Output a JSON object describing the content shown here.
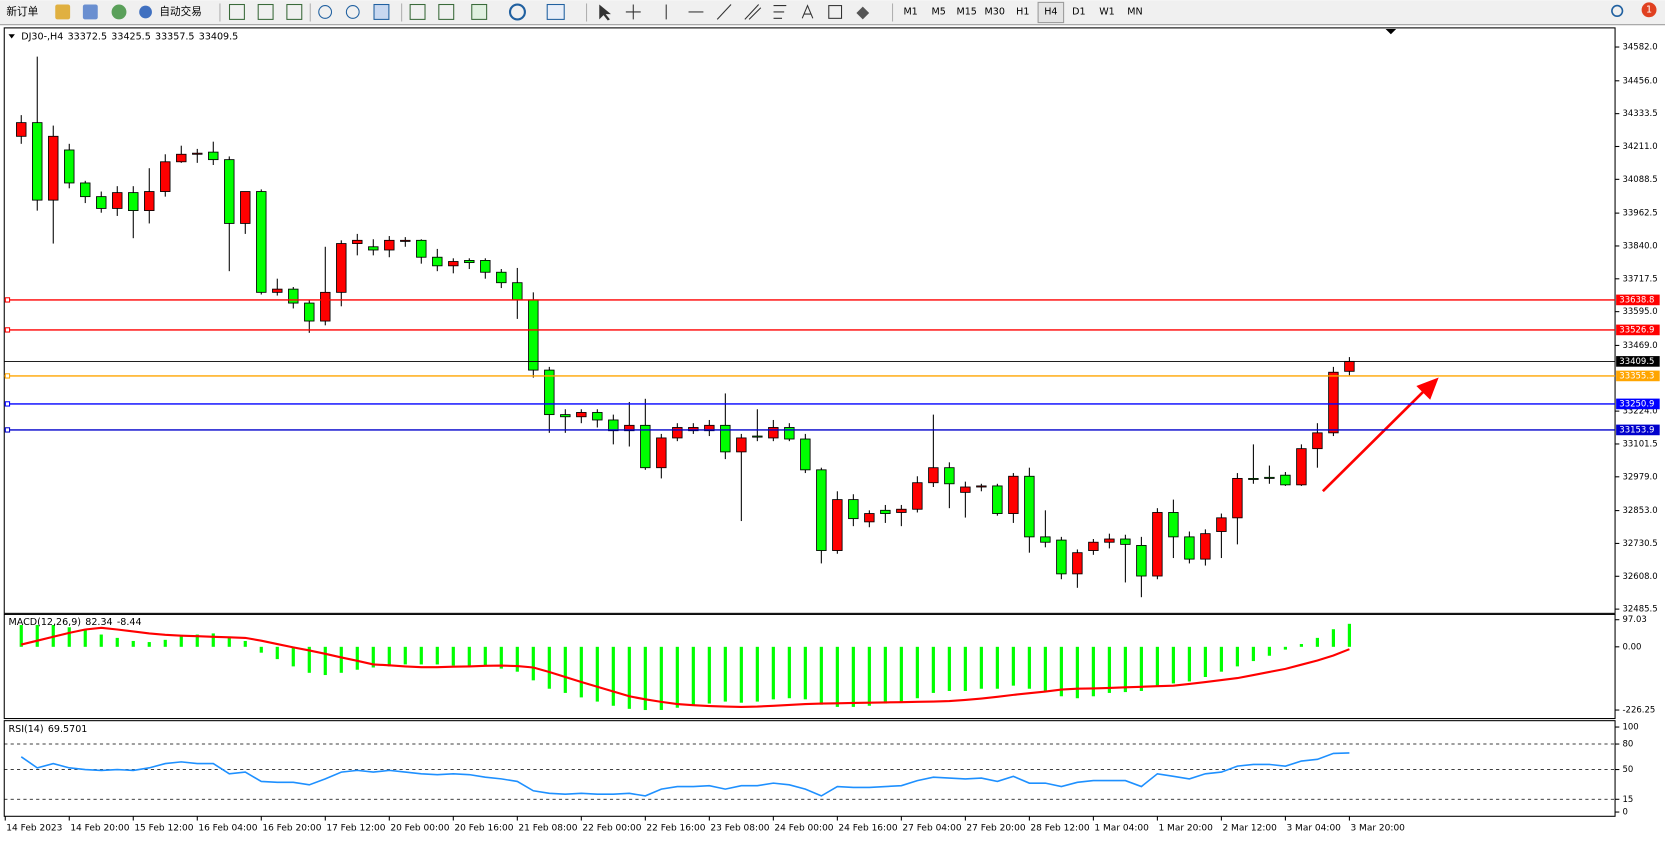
{
  "toolbar": {
    "new_order": "新订单",
    "auto_trading": "自动交易",
    "timeframes": [
      "M1",
      "M5",
      "M15",
      "M30",
      "H1",
      "H4",
      "D1",
      "W1",
      "MN"
    ],
    "notifications": 1
  },
  "chart_data": [
    {
      "type": "candlestick",
      "title": "DJ30-,H4",
      "up_color": "#ff0000",
      "down_color": "#00ff00",
      "ohlc": [
        [
          34249,
          34328,
          34221,
          34300
        ],
        [
          34300,
          34546,
          33972,
          34011
        ],
        [
          34011,
          34289,
          33849,
          34249
        ],
        [
          34198,
          34221,
          34055,
          34075
        ],
        [
          34075,
          34083,
          34000,
          34024
        ],
        [
          34024,
          34043,
          33964,
          33980
        ],
        [
          33980,
          34063,
          33952,
          34039
        ],
        [
          34039,
          34063,
          33869,
          33972
        ],
        [
          33972,
          34130,
          33924,
          34043
        ],
        [
          34043,
          34182,
          34024,
          34154
        ],
        [
          34154,
          34214,
          34150,
          34182
        ],
        [
          34182,
          34202,
          34150,
          34186
        ],
        [
          34190,
          34229,
          34142,
          34162
        ],
        [
          34162,
          34174,
          33746,
          33924
        ],
        [
          33924,
          34043,
          33885,
          34043
        ],
        [
          34043,
          34051,
          33659,
          33667
        ],
        [
          33667,
          33718,
          33655,
          33679
        ],
        [
          33679,
          33687,
          33607,
          33627
        ],
        [
          33627,
          33639,
          33516,
          33560
        ],
        [
          33560,
          33837,
          33544,
          33667
        ],
        [
          33667,
          33861,
          33615,
          33849
        ],
        [
          33849,
          33885,
          33805,
          33861
        ],
        [
          33837,
          33865,
          33805,
          33825
        ],
        [
          33825,
          33877,
          33798,
          33861
        ],
        [
          33857,
          33873,
          33837,
          33861
        ],
        [
          33861,
          33865,
          33774,
          33798
        ],
        [
          33798,
          33829,
          33746,
          33766
        ],
        [
          33766,
          33794,
          33738,
          33782
        ],
        [
          33786,
          33794,
          33754,
          33778
        ],
        [
          33786,
          33794,
          33718,
          33742
        ],
        [
          33742,
          33754,
          33683,
          33703
        ],
        [
          33703,
          33758,
          33568,
          33639
        ],
        [
          33639,
          33667,
          33349,
          33377
        ],
        [
          33377,
          33389,
          33143,
          33211
        ],
        [
          33211,
          33231,
          33143,
          33203
        ],
        [
          33203,
          33231,
          33179,
          33219
        ],
        [
          33219,
          33231,
          33163,
          33191
        ],
        [
          33191,
          33211,
          33100,
          33151
        ],
        [
          33151,
          33258,
          33092,
          33171
        ],
        [
          33171,
          33270,
          33005,
          33013
        ],
        [
          33013,
          33139,
          32973,
          33124
        ],
        [
          33124,
          33179,
          33112,
          33163
        ],
        [
          33151,
          33179,
          33139,
          33163
        ],
        [
          33151,
          33191,
          33131,
          33171
        ],
        [
          33171,
          33290,
          33045,
          33072
        ],
        [
          33072,
          33139,
          32814,
          33124
        ],
        [
          33131,
          33231,
          33112,
          33128
        ],
        [
          33124,
          33191,
          33112,
          33163
        ],
        [
          33163,
          33179,
          33112,
          33120
        ],
        [
          33120,
          33139,
          32993,
          33005
        ],
        [
          33005,
          33013,
          32656,
          32704
        ],
        [
          32704,
          32925,
          32692,
          32894
        ],
        [
          32894,
          32914,
          32795,
          32823
        ],
        [
          32811,
          32854,
          32791,
          32842
        ],
        [
          32854,
          32874,
          32807,
          32842
        ],
        [
          32846,
          32874,
          32795,
          32858
        ],
        [
          32858,
          32981,
          32846,
          32957
        ],
        [
          32957,
          33211,
          32941,
          33013
        ],
        [
          33013,
          33033,
          32862,
          32953
        ],
        [
          32921,
          32961,
          32827,
          32941
        ],
        [
          32941,
          32953,
          32925,
          32945
        ],
        [
          32945,
          32953,
          32834,
          32842
        ],
        [
          32842,
          32993,
          32807,
          32981
        ],
        [
          32981,
          33013,
          32696,
          32755
        ],
        [
          32755,
          32854,
          32716,
          32735
        ],
        [
          32743,
          32755,
          32597,
          32617
        ],
        [
          32617,
          32708,
          32565,
          32696
        ],
        [
          32704,
          32747,
          32688,
          32735
        ],
        [
          32735,
          32767,
          32712,
          32747
        ],
        [
          32747,
          32763,
          32585,
          32727
        ],
        [
          32723,
          32755,
          32530,
          32609
        ],
        [
          32609,
          32862,
          32597,
          32846
        ],
        [
          32846,
          32894,
          32676,
          32755
        ],
        [
          32755,
          32775,
          32656,
          32672
        ],
        [
          32672,
          32783,
          32648,
          32767
        ],
        [
          32775,
          32842,
          32676,
          32826
        ],
        [
          32826,
          32993,
          32727,
          32973
        ],
        [
          32973,
          33100,
          32953,
          32969
        ],
        [
          32977,
          33021,
          32953,
          32973
        ],
        [
          32985,
          32997,
          32945,
          32949
        ],
        [
          32949,
          33100,
          32945,
          33084
        ],
        [
          33084,
          33179,
          33013,
          33143
        ],
        [
          33143,
          33389,
          33131,
          33369
        ],
        [
          33372.5,
          33425.5,
          33357.5,
          33409.5
        ]
      ],
      "ylim": [
        32473.7,
        34649.4
      ],
      "yticks": [
        {
          "value": 34582,
          "label": "34582.0"
        },
        {
          "value": 34456,
          "label": "34456.0"
        },
        34333.5,
        {
          "value": 34211,
          "label": "34211.0"
        },
        34088.5,
        33962.5,
        {
          "value": 33840,
          "label": "33840.0"
        },
        33717.5,
        {
          "value": 33595,
          "label": "33595.0"
        },
        {
          "value": 33469,
          "label": "33469.0"
        },
        {
          "value": 33224,
          "label": "33224.0"
        },
        33101.5,
        {
          "value": 32979,
          "label": "32979.0"
        },
        {
          "value": 32853,
          "label": "32853.0"
        },
        32730.5,
        {
          "value": 32608,
          "label": "32608.0"
        },
        32485.5
      ],
      "levels": [
        {
          "value": 33638.8,
          "color": "#ff0000"
        },
        {
          "value": 33526.9,
          "color": "#ff0000"
        },
        {
          "value": 33355.3,
          "color": "#ffa500"
        },
        {
          "value": 33250.9,
          "color": "#0000ff"
        },
        {
          "value": 33153.9,
          "color": "#0000cc"
        }
      ],
      "x_labels": [
        "14 Feb 2023",
        "14 Feb 20:00",
        "15 Feb 12:00",
        "16 Feb 04:00",
        "16 Feb 20:00",
        "17 Feb 12:00",
        "20 Feb 00:00",
        "20 Feb 16:00",
        "21 Feb 08:00",
        "22 Feb 00:00",
        "22 Feb 16:00",
        "23 Feb 08:00",
        "24 Feb 00:00",
        "24 Feb 16:00",
        "27 Feb 04:00",
        "27 Feb 20:00",
        "28 Feb 12:00",
        "1 Mar 04:00",
        "1 Mar 20:00",
        "2 Mar 12:00",
        "3 Mar 04:00",
        "3 Mar 20:00"
      ]
    },
    {
      "type": "macd",
      "title": "MACD(12,26,9)",
      "series": [
        {
          "color": "#00ff00",
          "values": [
            78,
            78,
            78,
            70,
            63,
            44,
            32,
            21,
            17,
            25,
            40,
            44,
            48,
            32,
            21,
            -21,
            -44,
            -70,
            -93,
            -101,
            -93,
            -82,
            -74,
            -70,
            -63,
            -63,
            -63,
            -67,
            -67,
            -70,
            -78,
            -89,
            -120,
            -150,
            -165,
            -181,
            -196,
            -211,
            -222,
            -226.25,
            -226,
            -218,
            -211,
            -203,
            -196,
            -200,
            -196,
            -188,
            -184,
            -188,
            -207,
            -215,
            -215,
            -211,
            -203,
            -196,
            -184,
            -165,
            -158,
            -158,
            -150,
            -150,
            -139,
            -150,
            -158,
            -177,
            -184,
            -177,
            -165,
            -162,
            -158,
            -143,
            -131,
            -124,
            -108,
            -89,
            -70,
            -51,
            -32,
            -10,
            10,
            32,
            63,
            82.34
          ]
        },
        {
          "color": "#ff0000",
          "values": [
            8,
            22,
            36,
            50,
            62,
            68,
            62,
            55,
            48,
            43,
            40,
            38,
            36,
            34,
            32,
            22,
            10,
            -2,
            -13,
            -25,
            -38,
            -50,
            -63,
            -66,
            -70,
            -73,
            -73,
            -71,
            -70,
            -68,
            -67,
            -69,
            -74,
            -90,
            -108,
            -126,
            -143,
            -160,
            -177,
            -188,
            -197,
            -205,
            -209,
            -212,
            -214,
            -215,
            -214,
            -211,
            -208,
            -205,
            -203,
            -202,
            -201,
            -200,
            -199,
            -198,
            -197,
            -196,
            -194,
            -190,
            -185,
            -179,
            -172,
            -166,
            -160,
            -153,
            -150,
            -149,
            -147,
            -145,
            -143,
            -141,
            -139,
            -133,
            -126,
            -119,
            -112,
            -101,
            -90,
            -79,
            -64,
            -49,
            -31,
            -8.44
          ]
        }
      ],
      "ylim": [
        -256.7,
        116.0
      ],
      "yticks": [
        97.03,
        {
          "value": 0,
          "label": "0.00"
        },
        -226.25
      ]
    },
    {
      "type": "line",
      "title": "RSI(14)",
      "series": [
        {
          "color": "#1e90ff",
          "values": [
            65,
            52,
            57,
            52,
            50,
            49,
            50,
            49,
            52,
            57,
            59,
            57,
            57,
            45,
            47,
            36,
            35,
            35,
            32,
            39,
            47,
            49,
            47,
            49,
            47,
            45,
            44,
            45,
            44,
            41,
            39,
            36,
            25,
            22,
            21,
            22,
            21,
            21,
            22,
            19,
            27,
            30,
            30,
            31,
            27,
            31,
            31,
            34,
            32,
            27,
            19,
            30,
            29,
            29,
            30,
            31,
            37,
            41,
            40,
            39,
            40,
            36,
            42,
            34,
            34,
            30,
            35,
            37,
            37,
            37,
            30,
            45,
            42,
            39,
            45,
            47,
            54,
            56,
            56,
            54,
            60,
            62,
            69,
            69.5701
          ]
        }
      ],
      "ylim": [
        -5,
        106.25
      ],
      "yticks": [
        100,
        80,
        50,
        15,
        0
      ],
      "levels": [
        80,
        50,
        15
      ]
    }
  ]
}
